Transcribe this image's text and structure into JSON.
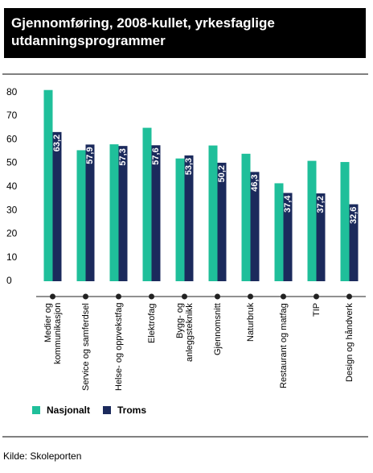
{
  "chart_data": {
    "type": "bar",
    "title": "Gjennomføring, 2008-kullet, yrkesfaglige utdanningsprogrammer",
    "source": "Kilde: Skoleporten",
    "categories": [
      "Medier og kommunikasjon",
      "Service og samferdsel",
      "Helse- og oppvekstfag",
      "Elektrofag",
      "Bygg- og anleggsteknikk",
      "Gjennomsnitt",
      "Naturbruk",
      "Restaurant og matfag",
      "TIP",
      "Design og håndverk"
    ],
    "series": [
      {
        "name": "Nasjonalt",
        "color": "#1fbf9a",
        "values": [
          81,
          55.5,
          58,
          65,
          52,
          57.5,
          54,
          41.5,
          51,
          50.5
        ]
      },
      {
        "name": "Troms",
        "color": "#1b2a5c",
        "values": [
          63.2,
          57.9,
          57.3,
          57.6,
          53.3,
          50.2,
          46.3,
          37.4,
          37.2,
          32.6
        ],
        "value_labels": [
          "63,2",
          "57,9",
          "57,3",
          "57,6",
          "53,3",
          "50,2",
          "46,3",
          "37,4",
          "37,2",
          "32,6"
        ]
      }
    ],
    "ylim": [
      0,
      85
    ],
    "yticks": [
      0,
      10,
      20,
      30,
      40,
      50,
      60,
      70,
      80
    ],
    "grid": false,
    "legend": "bottom"
  }
}
